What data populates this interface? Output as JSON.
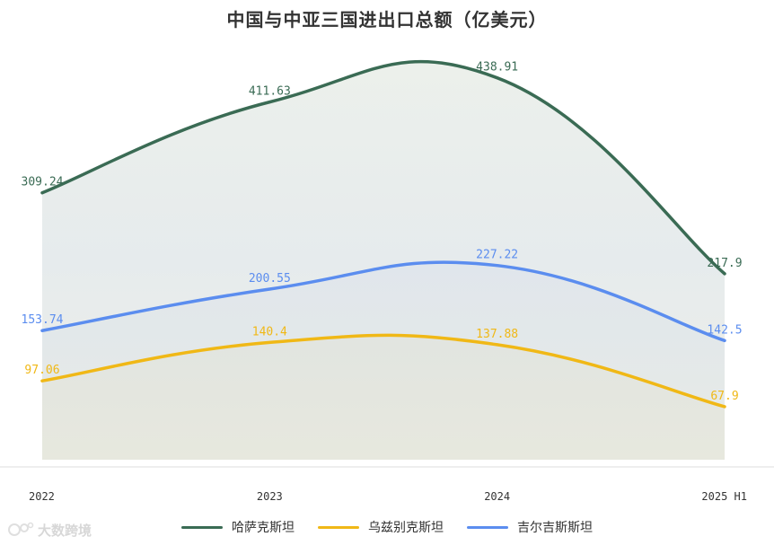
{
  "chart_data": {
    "type": "line",
    "title": "中国与中亚三国进出口总额（亿美元）",
    "categories": [
      "2022",
      "2023",
      "2024",
      "2025 H1"
    ],
    "ylim": [
      0,
      470
    ],
    "grid": false,
    "legend_position": "bottom-center",
    "series": [
      {
        "name": "哈萨克斯坦",
        "color": "#3a6b54",
        "values": [
          309.24,
          411.63,
          438.91,
          217.9
        ],
        "labels": [
          "309.24",
          "411.63",
          "438.91",
          "217.9"
        ]
      },
      {
        "name": "乌兹别克斯坦",
        "color": "#f0b816",
        "values": [
          97.06,
          140.4,
          137.88,
          67.9
        ],
        "labels": [
          "97.06",
          "140.4",
          "137.88",
          "67.9"
        ]
      },
      {
        "name": "吉尔吉斯斯坦",
        "color": "#5b8def",
        "values": [
          153.74,
          200.55,
          227.22,
          142.5
        ],
        "labels": [
          "153.74",
          "200.55",
          "227.22",
          "142.5"
        ]
      }
    ]
  },
  "watermark": {
    "text": "大数跨境"
  }
}
